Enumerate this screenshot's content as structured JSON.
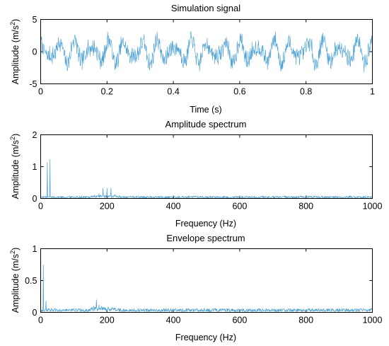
{
  "chart_data": [
    {
      "type": "line",
      "title": "Simulation signal",
      "xlabel": "Time (s)",
      "ylabel_main": "Amplitude (m/s",
      "ylabel_sup": "2",
      "ylabel_close": ")",
      "xlim": [
        0,
        1
      ],
      "ylim": [
        -5,
        5
      ],
      "xticks": [
        0,
        0.2,
        0.4,
        0.6,
        0.8,
        1
      ],
      "xtick_labels": [
        "0",
        "0.2",
        "0.4",
        "0.6",
        "0.8",
        "1"
      ],
      "yticks": [
        -5,
        0,
        5
      ],
      "ytick_labels": [
        "-5",
        "0",
        "5"
      ],
      "grid": false,
      "series": [
        {
          "color": "#4aa0d5",
          "signal": {
            "n_samples": 1000,
            "components": [
              {
                "kind": "sine",
                "freq_hz": 20,
                "amp": 1.3
              },
              {
                "kind": "sine",
                "freq_hz": 28,
                "amp": 0.7
              },
              {
                "kind": "sine",
                "freq_hz": 200,
                "amp": 0.35
              },
              {
                "kind": "noise",
                "amp": 1.2
              }
            ],
            "range": [
              -4,
              4
            ]
          }
        }
      ]
    },
    {
      "type": "line",
      "title": "Amplitude spectrum",
      "xlabel": "Frequency (Hz)",
      "ylabel_main": "Amplitude (m/s",
      "ylabel_sup": "2",
      "ylabel_close": ")",
      "xlim": [
        0,
        1000
      ],
      "ylim": [
        0,
        2
      ],
      "xticks": [
        0,
        200,
        400,
        600,
        800,
        1000
      ],
      "xtick_labels": [
        "0",
        "200",
        "400",
        "600",
        "800",
        "1000"
      ],
      "yticks": [
        0,
        1,
        2
      ],
      "ytick_labels": [
        "0",
        "1",
        "2"
      ],
      "grid": false,
      "series": [
        {
          "color": "#4aa0d5",
          "peaks": [
            {
              "x": 20,
              "y": 1.13
            },
            {
              "x": 28,
              "y": 1.23
            },
            {
              "x": 188,
              "y": 0.33
            },
            {
              "x": 200,
              "y": 0.33
            },
            {
              "x": 212,
              "y": 0.33
            },
            {
              "x": 176,
              "y": 0.15
            },
            {
              "x": 224,
              "y": 0.12
            }
          ],
          "noise_floor": 0.05,
          "n_points": 1000
        }
      ]
    },
    {
      "type": "line",
      "title": "Envelope spectrum",
      "xlabel": "Frequency (Hz)",
      "ylabel_main": "Amplitude (m/s",
      "ylabel_sup": "2",
      "ylabel_close": ")",
      "xlim": [
        0,
        1000
      ],
      "ylim": [
        0,
        1
      ],
      "xticks": [
        0,
        200,
        400,
        600,
        800,
        1000
      ],
      "xtick_labels": [
        "0",
        "200",
        "400",
        "600",
        "800",
        "1000"
      ],
      "yticks": [
        0,
        0.5,
        1
      ],
      "ytick_labels": [
        "0",
        "0.5",
        "1"
      ],
      "grid": false,
      "series": [
        {
          "color": "#4aa0d5",
          "peaks": [
            {
              "x": 8,
              "y": 0.75
            },
            {
              "x": 16,
              "y": 0.18
            },
            {
              "x": 168,
              "y": 0.2
            },
            {
              "x": 176,
              "y": 0.12
            },
            {
              "x": 160,
              "y": 0.1
            },
            {
              "x": 184,
              "y": 0.1
            }
          ],
          "noise_floor": 0.04,
          "n_points": 1000
        }
      ]
    }
  ]
}
